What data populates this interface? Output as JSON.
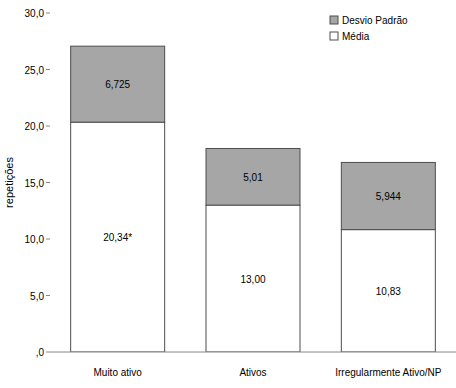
{
  "chart_data": {
    "type": "bar",
    "stacked": true,
    "data_labels": true,
    "grid": false,
    "legend": "top-right",
    "y_label": "repetições",
    "categories": [
      "Muito ativo",
      "Ativos",
      "Irregularmente Ativo/NP"
    ],
    "series": [
      {
        "name": "Média",
        "color": "#ffffff",
        "values": [
          20.34,
          13.0,
          10.83
        ],
        "value_labels": [
          "20,34*",
          "13,00",
          "10,83"
        ]
      },
      {
        "name": "Desvio Padrão",
        "color": "#a6a6a6",
        "values": [
          6.725,
          5.01,
          5.944
        ],
        "value_labels": [
          "6,725",
          "5,01",
          "5,944"
        ]
      }
    ],
    "ylim": [
      0,
      30
    ],
    "yticks": [
      {
        "value": 0,
        "label": ",0"
      },
      {
        "value": 5,
        "label": "5,0"
      },
      {
        "value": 10,
        "label": "10,0"
      },
      {
        "value": 15,
        "label": "15,0"
      },
      {
        "value": 20,
        "label": "20,0"
      },
      {
        "value": 25,
        "label": "25,0"
      },
      {
        "value": 30,
        "label": "30,0"
      }
    ]
  }
}
